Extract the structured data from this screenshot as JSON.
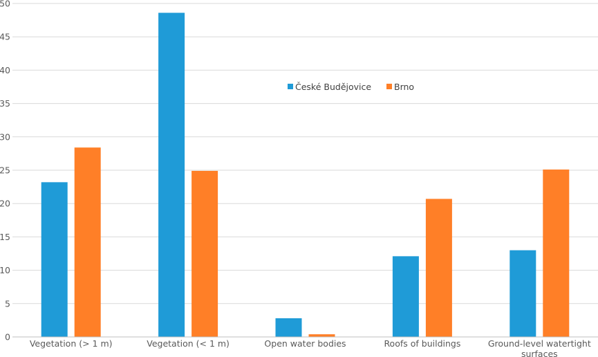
{
  "chart_data": {
    "type": "bar",
    "categories": [
      [
        "Vegetation (> 1 m)"
      ],
      [
        "Vegetation (< 1 m)"
      ],
      [
        "Open water bodies"
      ],
      [
        "Roofs of buildings"
      ],
      [
        "Ground-level watertight",
        "surfaces"
      ]
    ],
    "series": [
      {
        "name": "České Budějovice",
        "color": "#1F9BD7",
        "values": [
          23.2,
          48.6,
          2.8,
          12.1,
          13.0
        ]
      },
      {
        "name": "Brno",
        "color": "#FF7F27",
        "values": [
          28.4,
          24.9,
          0.4,
          20.7,
          25.1
        ]
      }
    ],
    "ylim": [
      0,
      50
    ],
    "yticks": [
      0,
      5,
      10,
      15,
      20,
      25,
      30,
      35,
      40,
      45,
      50
    ],
    "grid": true,
    "legend_position": "top-center"
  }
}
